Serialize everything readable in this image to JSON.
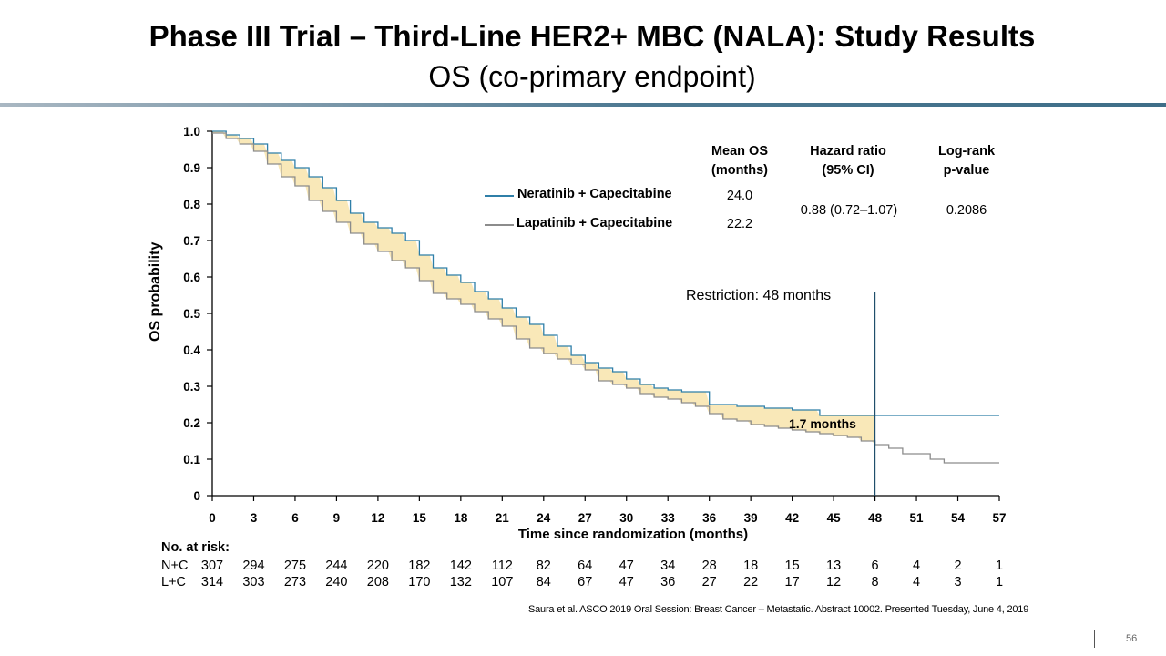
{
  "slide": {
    "title": "Phase III Trial – Third-Line HER2+ MBC (NALA): Study Results",
    "subtitle": "OS (co-primary endpoint)",
    "citation": "Saura et al. ASCO 2019 Oral Session: Breast Cancer – Metastatic. Abstract 10002. Presented Tuesday, June 4, 2019",
    "page_number": "56"
  },
  "table": {
    "headers": {
      "mean_os": [
        "Mean OS",
        "(months)"
      ],
      "hazard_ratio": [
        "Hazard ratio",
        "(95% CI)"
      ],
      "log_rank": [
        "Log-rank",
        "p-value"
      ]
    },
    "rows": [
      {
        "label": "Neratinib  + Capecitabine",
        "mean_os": "24.0",
        "color": "#2f7fa8"
      },
      {
        "label": "Lapatinib  + Capecitabine",
        "mean_os": "22.2",
        "color": "#8c8c8c"
      }
    ],
    "hazard_ratio_value": "0.88 (0.72–1.07)",
    "p_value": "0.2086"
  },
  "annotations": {
    "restriction": "Restriction: 48 months",
    "difference": "1.7 months"
  },
  "chart_data": {
    "type": "line",
    "title": "OS (co-primary endpoint)",
    "xlabel": "Time  since  randomization  (months)",
    "ylabel": "OS probability",
    "xlim": [
      0,
      57
    ],
    "ylim": [
      0,
      1.0
    ],
    "x_ticks": [
      "0",
      "3",
      "6",
      "9",
      "12",
      "15",
      "18",
      "21",
      "24",
      "27",
      "30",
      "33",
      "36",
      "39",
      "42",
      "45",
      "48",
      "51",
      "54",
      "57"
    ],
    "y_ticks": [
      "0",
      "0.1",
      "0.2",
      "0.3",
      "0.4",
      "0.5",
      "0.6",
      "0.7",
      "0.8",
      "0.9",
      "1.0"
    ],
    "restriction_month": 48,
    "series": [
      {
        "name": "Neratinib + Capecitabine",
        "color": "#2f7fa8",
        "x": [
          0,
          1,
          2,
          3,
          4,
          5,
          6,
          7,
          8,
          9,
          10,
          11,
          12,
          13,
          14,
          15,
          16,
          17,
          18,
          19,
          20,
          21,
          22,
          23,
          24,
          25,
          26,
          27,
          28,
          29,
          30,
          31,
          32,
          33,
          34,
          35,
          36,
          37,
          38,
          39,
          40,
          41,
          42,
          43,
          44,
          45,
          46,
          47,
          48,
          57
        ],
        "values": [
          1.0,
          0.99,
          0.98,
          0.965,
          0.94,
          0.92,
          0.9,
          0.875,
          0.845,
          0.81,
          0.775,
          0.75,
          0.735,
          0.72,
          0.7,
          0.66,
          0.625,
          0.605,
          0.585,
          0.56,
          0.54,
          0.515,
          0.49,
          0.47,
          0.44,
          0.41,
          0.385,
          0.365,
          0.35,
          0.34,
          0.32,
          0.305,
          0.295,
          0.29,
          0.285,
          0.285,
          0.25,
          0.25,
          0.245,
          0.245,
          0.24,
          0.24,
          0.235,
          0.235,
          0.22,
          0.22,
          0.22,
          0.22,
          0.22,
          0.22
        ]
      },
      {
        "name": "Lapatinib + Capecitabine",
        "color": "#8c8c8c",
        "x": [
          0,
          1,
          2,
          3,
          4,
          5,
          6,
          7,
          8,
          9,
          10,
          11,
          12,
          13,
          14,
          15,
          16,
          17,
          18,
          19,
          20,
          21,
          22,
          23,
          24,
          25,
          26,
          27,
          28,
          29,
          30,
          31,
          32,
          33,
          34,
          35,
          36,
          37,
          38,
          39,
          40,
          41,
          42,
          43,
          44,
          45,
          46,
          47,
          48,
          49,
          50,
          51,
          52,
          53,
          54,
          55,
          56,
          57
        ],
        "values": [
          0.995,
          0.98,
          0.965,
          0.945,
          0.91,
          0.875,
          0.85,
          0.81,
          0.78,
          0.75,
          0.72,
          0.69,
          0.67,
          0.645,
          0.625,
          0.59,
          0.555,
          0.54,
          0.525,
          0.505,
          0.485,
          0.465,
          0.43,
          0.405,
          0.39,
          0.375,
          0.36,
          0.345,
          0.315,
          0.305,
          0.295,
          0.28,
          0.27,
          0.265,
          0.255,
          0.245,
          0.225,
          0.21,
          0.205,
          0.195,
          0.19,
          0.185,
          0.18,
          0.175,
          0.17,
          0.165,
          0.16,
          0.15,
          0.14,
          0.13,
          0.115,
          0.115,
          0.1,
          0.09,
          0.09,
          0.09,
          0.09,
          0.09
        ]
      }
    ],
    "at_risk": {
      "title": "No. at risk:",
      "rows": [
        {
          "label": "N+C",
          "values": [
            "307",
            "294",
            "275",
            "244",
            "220",
            "182",
            "142",
            "112",
            "82",
            "64",
            "47",
            "34",
            "28",
            "18",
            "15",
            "13",
            "6",
            "4",
            "2",
            "1"
          ]
        },
        {
          "label": "L+C",
          "values": [
            "314",
            "303",
            "273",
            "240",
            "208",
            "170",
            "132",
            "107",
            "84",
            "67",
            "47",
            "36",
            "27",
            "22",
            "17",
            "12",
            "8",
            "4",
            "3",
            "1"
          ]
        }
      ]
    }
  }
}
